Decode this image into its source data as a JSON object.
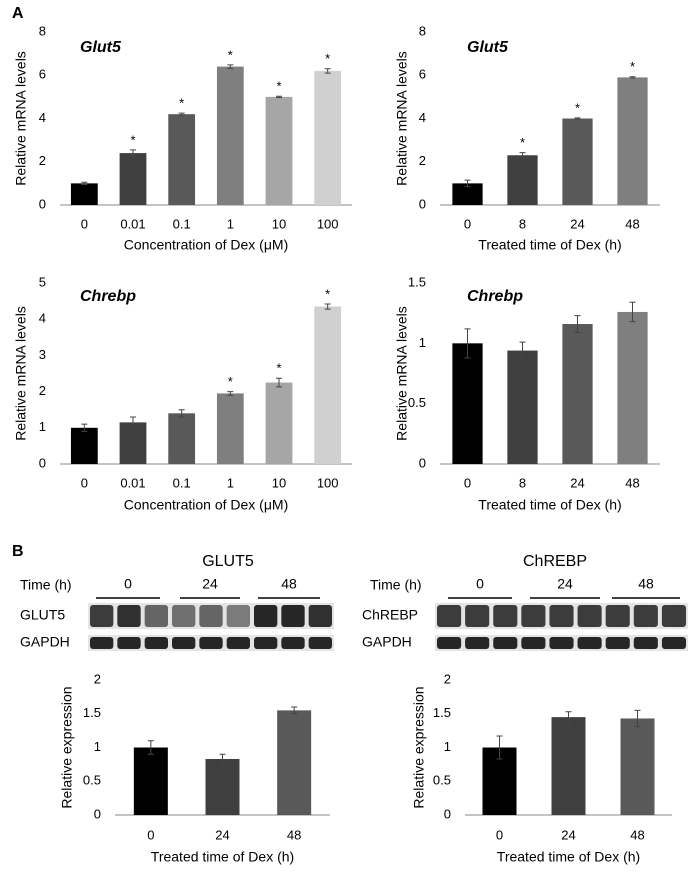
{
  "panels": [
    "A",
    "B"
  ],
  "blots": [
    {
      "title": "GLUT5",
      "time_label": "Time (h)",
      "times": [
        "0",
        "24",
        "48"
      ],
      "rows": [
        "GLUT5",
        "GAPDH"
      ]
    },
    {
      "title": "ChREBP",
      "time_label": "Time (h)",
      "times": [
        "0",
        "24",
        "48"
      ],
      "rows": [
        "ChREBP",
        "GAPDH"
      ]
    }
  ],
  "chart_data": [
    {
      "type": "bar",
      "title": "Glut5",
      "y_label": "Relative mRNA levels",
      "x_label": "Concentration of Dex (μM)",
      "categories": [
        "0",
        "0.01",
        "0.1",
        "1",
        "10",
        "100"
      ],
      "values": [
        1,
        2.4,
        4.2,
        6.4,
        5.0,
        6.2
      ],
      "errors": [
        0.05,
        0.15,
        0.05,
        0.08,
        0.03,
        0.1
      ],
      "annotations": [
        null,
        "*",
        "*",
        "*",
        "*",
        "*"
      ],
      "colors": [
        "#000000",
        "#3f3f3f",
        "#595959",
        "#7f7f7f",
        "#a6a6a6",
        "#d0d0d0"
      ],
      "ylim": [
        0,
        8
      ],
      "yticks": [
        0,
        2,
        4,
        6,
        8
      ]
    },
    {
      "type": "bar",
      "title": "Glut5",
      "y_label": "Relative mRNA levels",
      "x_label": "Treated time of Dex (h)",
      "categories": [
        "0",
        "8",
        "24",
        "48"
      ],
      "values": [
        1,
        2.3,
        4.0,
        5.9
      ],
      "errors": [
        0.15,
        0.12,
        0.03,
        0.03
      ],
      "annotations": [
        null,
        "*",
        "*",
        "*"
      ],
      "colors": [
        "#000000",
        "#3f3f3f",
        "#595959",
        "#7f7f7f"
      ],
      "ylim": [
        0,
        8
      ],
      "yticks": [
        0,
        2,
        4,
        6,
        8
      ]
    },
    {
      "type": "bar",
      "title": "Chrebp",
      "y_label": "Relative mRNA levels",
      "x_label": "Concentration of Dex (μM)",
      "categories": [
        "0",
        "0.01",
        "0.1",
        "1",
        "10",
        "100"
      ],
      "values": [
        1,
        1.15,
        1.4,
        1.95,
        2.25,
        4.35
      ],
      "errors": [
        0.1,
        0.15,
        0.1,
        0.05,
        0.12,
        0.07
      ],
      "annotations": [
        null,
        null,
        null,
        "*",
        "*",
        "*"
      ],
      "colors": [
        "#000000",
        "#3f3f3f",
        "#595959",
        "#7f7f7f",
        "#a6a6a6",
        "#d0d0d0"
      ],
      "ylim": [
        0,
        5
      ],
      "yticks": [
        0,
        1,
        2,
        3,
        4,
        5
      ]
    },
    {
      "type": "bar",
      "title": "Chrebp",
      "y_label": "Relative mRNA levels",
      "x_label": "Treated time of Dex (h)",
      "categories": [
        "0",
        "8",
        "24",
        "48"
      ],
      "values": [
        1,
        0.94,
        1.16,
        1.26
      ],
      "errors": [
        0.12,
        0.07,
        0.07,
        0.08
      ],
      "colors": [
        "#000000",
        "#3f3f3f",
        "#595959",
        "#7f7f7f"
      ],
      "ylim": [
        0,
        1.5
      ],
      "yticks": [
        0,
        0.5,
        1,
        1.5
      ]
    },
    {
      "type": "bar",
      "y_label": "Relative expression",
      "x_label": "Treated time of Dex (h)",
      "categories": [
        "0",
        "24",
        "48"
      ],
      "values": [
        1,
        0.83,
        1.55
      ],
      "errors": [
        0.1,
        0.07,
        0.05
      ],
      "colors": [
        "#000000",
        "#3f3f3f",
        "#595959"
      ],
      "ylim": [
        0,
        2
      ],
      "yticks": [
        0,
        0.5,
        1,
        1.5,
        2
      ]
    },
    {
      "type": "bar",
      "y_label": "Relative expression",
      "x_label": "Treated time of Dex (h)",
      "categories": [
        "0",
        "24",
        "48"
      ],
      "values": [
        1,
        1.45,
        1.43
      ],
      "errors": [
        0.17,
        0.08,
        0.12
      ],
      "colors": [
        "#000000",
        "#3f3f3f",
        "#595959"
      ],
      "ylim": [
        0,
        2
      ],
      "yticks": [
        0,
        0.5,
        1,
        1.5,
        2
      ]
    }
  ]
}
